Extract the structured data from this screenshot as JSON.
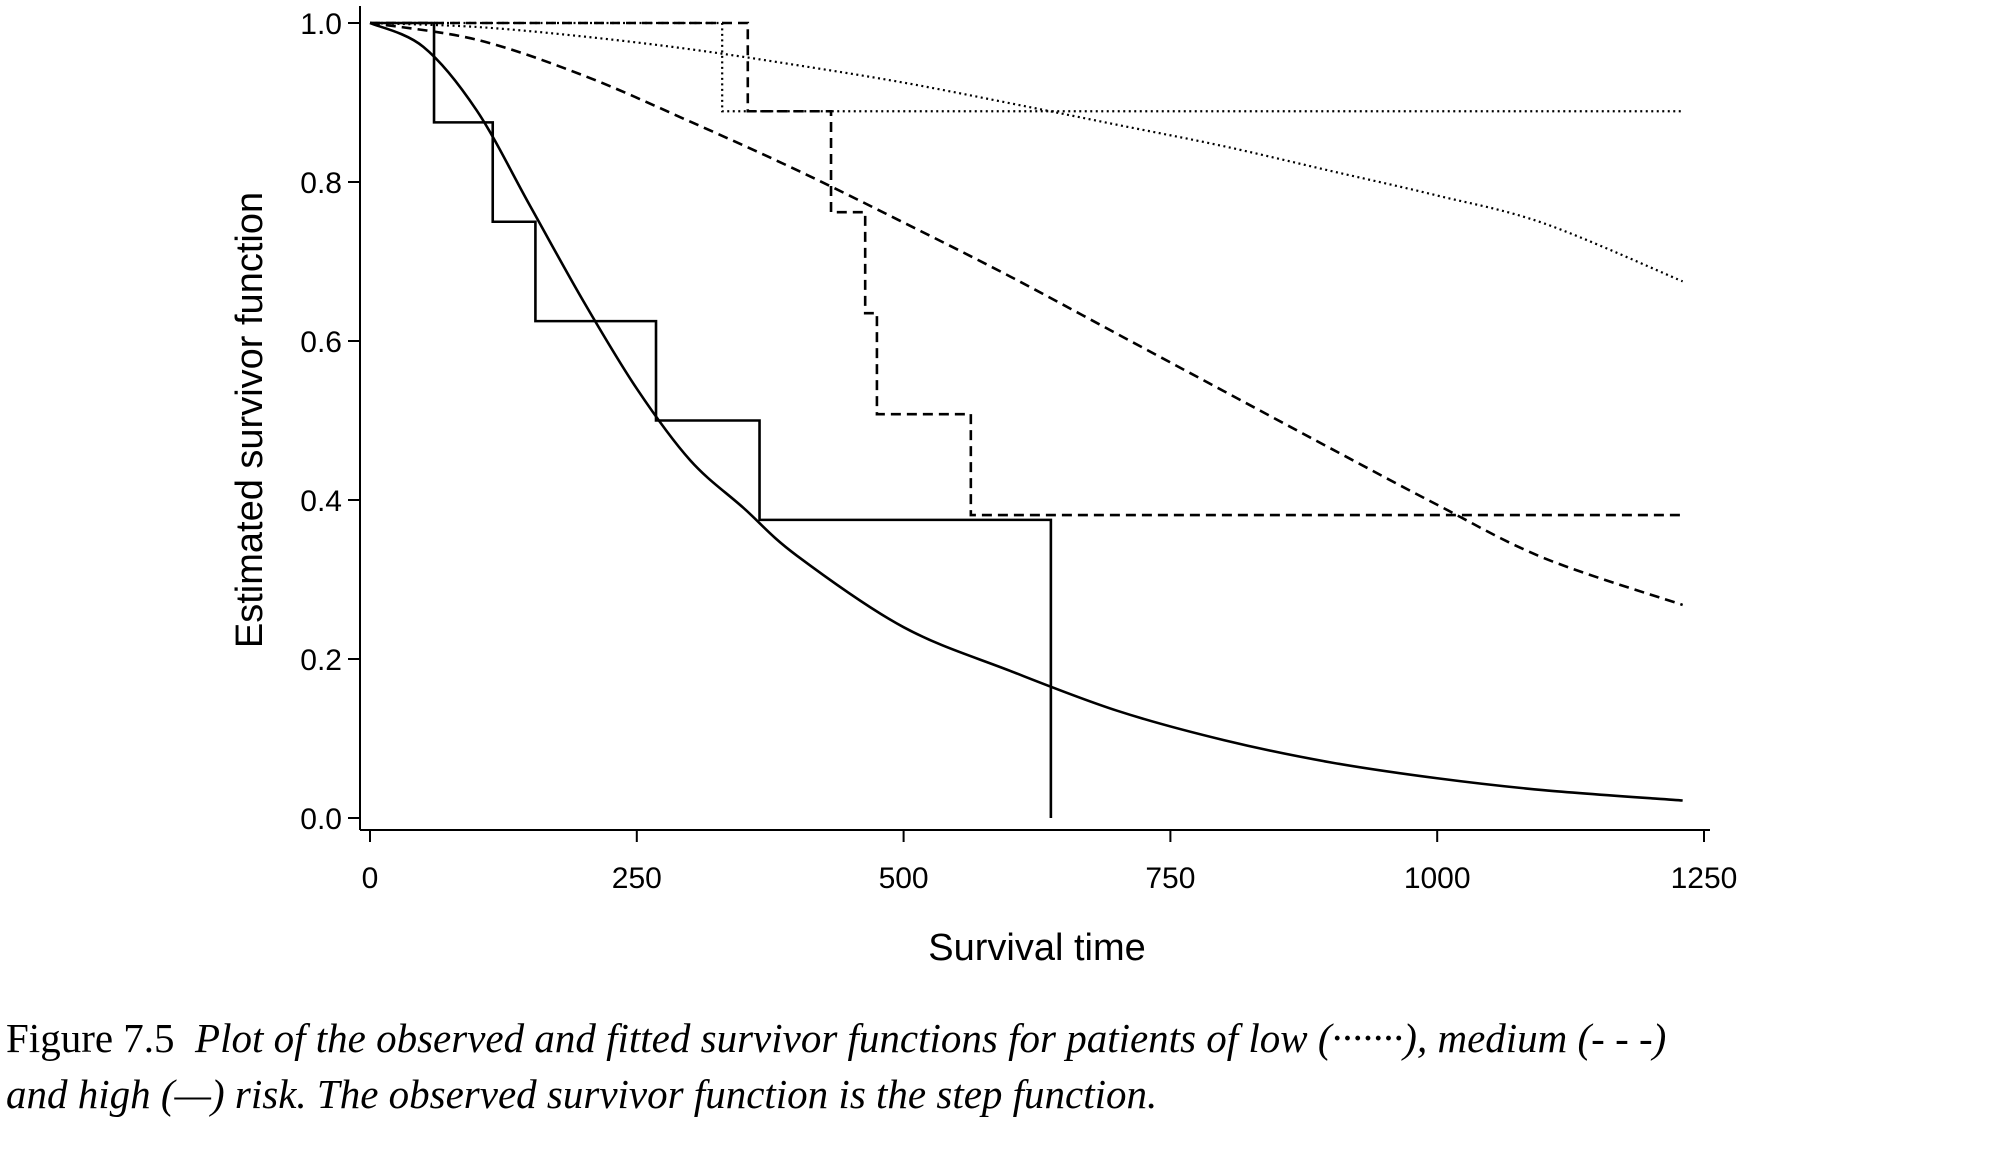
{
  "chart_data": {
    "type": "line",
    "xlabel": "Survival time",
    "ylabel": "Estimated survivor function",
    "xlim": [
      0,
      1250
    ],
    "ylim": [
      0,
      1.0
    ],
    "xticks": [
      0,
      250,
      500,
      750,
      1000,
      1250
    ],
    "xtick_labels": [
      "0",
      "250",
      "500",
      "750",
      "1000",
      "1250"
    ],
    "yticks": [
      0.0,
      0.2,
      0.4,
      0.6,
      0.8,
      1.0
    ],
    "ytick_labels": [
      "0.0",
      "0.2",
      "0.4",
      "0.6",
      "0.8",
      "1.0"
    ],
    "grid": false,
    "legend": "none",
    "series": [
      {
        "style": "dotted",
        "kind": "observed-step",
        "x": [
          0,
          330,
          1230
        ],
        "y": [
          1.0,
          0.889,
          0.889
        ]
      },
      {
        "style": "dotted",
        "kind": "fitted-curve",
        "x": [
          0,
          100,
          200,
          300,
          400,
          500,
          600,
          700,
          800,
          900,
          1000,
          1100,
          1230
        ],
        "y": [
          1.0,
          0.995,
          0.983,
          0.967,
          0.947,
          0.925,
          0.899,
          0.872,
          0.845,
          0.814,
          0.783,
          0.748,
          0.675
        ]
      },
      {
        "style": "dashed",
        "kind": "observed-step",
        "x": [
          0,
          354,
          432,
          464,
          475,
          563,
          1230
        ],
        "y": [
          1.0,
          0.889,
          0.762,
          0.635,
          0.508,
          0.381,
          0.381
        ]
      },
      {
        "style": "dashed",
        "kind": "fitted-curve",
        "x": [
          0,
          100,
          200,
          300,
          400,
          500,
          600,
          700,
          800,
          900,
          1000,
          1100,
          1230
        ],
        "y": [
          1.0,
          0.979,
          0.934,
          0.876,
          0.815,
          0.749,
          0.681,
          0.609,
          0.537,
          0.465,
          0.394,
          0.327,
          0.268
        ]
      },
      {
        "style": "solid",
        "kind": "observed-step",
        "x": [
          0,
          60,
          115,
          155,
          268,
          365,
          638,
          638
        ],
        "y": [
          1.0,
          0.875,
          0.75,
          0.625,
          0.5,
          0.375,
          0.375,
          0.0
        ]
      },
      {
        "style": "solid",
        "kind": "fitted-curve",
        "x": [
          0,
          50,
          100,
          150,
          200,
          250,
          300,
          350,
          400,
          500,
          600,
          700,
          800,
          900,
          1000,
          1100,
          1230
        ],
        "y": [
          1.0,
          0.97,
          0.89,
          0.77,
          0.65,
          0.54,
          0.45,
          0.39,
          0.33,
          0.24,
          0.185,
          0.135,
          0.098,
          0.07,
          0.05,
          0.035,
          0.022
        ]
      }
    ]
  },
  "caption": {
    "label": "Figure 7.5",
    "line1": "Plot of the observed and fitted survivor functions for patients of low (·······), medium (- - -)",
    "line2": "and high (—) risk. The observed survivor function is the step function."
  }
}
